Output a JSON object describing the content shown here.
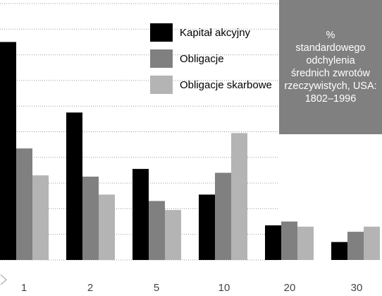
{
  "chart_data": {
    "type": "bar",
    "categories": [
      "1",
      "2",
      "5",
      "10",
      "20",
      "30"
    ],
    "series": [
      {
        "name": "Kapitał akcyjny",
        "color": "#000000",
        "values": [
          85,
          57.5,
          35.5,
          25.5,
          13.5,
          7
        ]
      },
      {
        "name": "Obligacje",
        "color": "#808080",
        "values": [
          43.5,
          32.5,
          23,
          34,
          15,
          11
        ]
      },
      {
        "name": "Obligacje skarbowe",
        "color": "#b4b4b4",
        "values": [
          33,
          25.5,
          19.5,
          49.5,
          13,
          13
        ]
      }
    ],
    "ylim": [
      0,
      100
    ],
    "grid": true,
    "legend_position": "top-center"
  },
  "info_box": {
    "lines": [
      "%",
      "standardowego",
      "odchylenia",
      "średnich zwrotów",
      "rzeczywistych, USA:",
      "1802–1996"
    ]
  }
}
